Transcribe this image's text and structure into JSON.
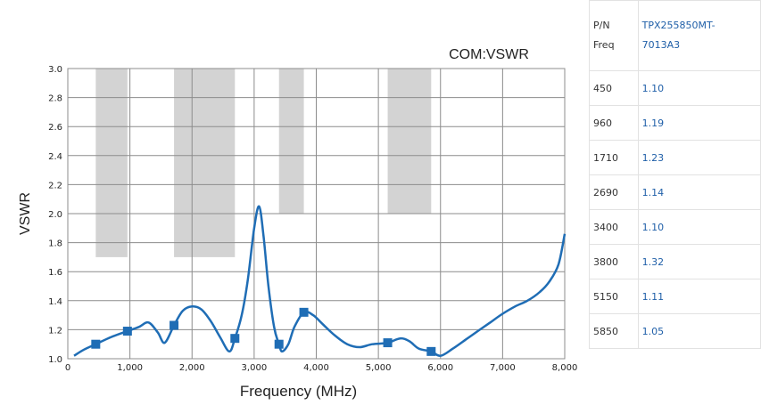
{
  "chart_data": {
    "type": "line",
    "title": "COM:VSWR",
    "xlabel": "Frequency (MHz)",
    "ylabel": "VSWR",
    "xlim": [
      0,
      8000
    ],
    "ylim": [
      1.0,
      3.0
    ],
    "x_ticks": [
      0,
      1000,
      2000,
      3000,
      4000,
      5000,
      6000,
      7000,
      8000
    ],
    "x_tick_labels": [
      "0",
      "1,000",
      "2,000",
      "3,000",
      "4,000",
      "5,000",
      "6,000",
      "7,000",
      "8,000"
    ],
    "y_ticks": [
      1.0,
      1.2,
      1.4,
      1.6,
      1.8,
      2.0,
      2.2,
      2.4,
      2.6,
      2.8,
      3.0
    ],
    "y_tick_labels": [
      "1.0",
      "1.2",
      "1.4",
      "1.6",
      "1.8",
      "2.0",
      "2.2",
      "2.4",
      "2.6",
      "2.8",
      "3.0"
    ],
    "grid": true,
    "line_color": "#1f6db5",
    "band_color": "#d3d3d3",
    "bands": [
      {
        "x0": 450,
        "x1": 960,
        "y0": 1.7,
        "y1": 3.0
      },
      {
        "x0": 1710,
        "x1": 2690,
        "y0": 1.7,
        "y1": 3.0
      },
      {
        "x0": 3400,
        "x1": 3800,
        "y0": 2.0,
        "y1": 3.0
      },
      {
        "x0": 5150,
        "x1": 5850,
        "y0": 2.0,
        "y1": 3.0
      }
    ],
    "series": [
      {
        "x": [
          100,
          250,
          450,
          700,
          960,
          1150,
          1300,
          1450,
          1560,
          1710,
          1850,
          2000,
          2150,
          2300,
          2450,
          2600,
          2690,
          2800,
          2900,
          3000,
          3080,
          3150,
          3230,
          3320,
          3400,
          3450,
          3550,
          3650,
          3800,
          3950,
          4100,
          4300,
          4500,
          4700,
          4900,
          5150,
          5350,
          5500,
          5650,
          5850,
          6000,
          6200,
          6400,
          6600,
          6800,
          7000,
          7200,
          7400,
          7600,
          7750,
          7900,
          8000
        ],
        "y": [
          1.02,
          1.06,
          1.1,
          1.15,
          1.19,
          1.22,
          1.25,
          1.18,
          1.11,
          1.23,
          1.33,
          1.36,
          1.34,
          1.26,
          1.15,
          1.05,
          1.14,
          1.3,
          1.55,
          1.9,
          2.05,
          1.85,
          1.5,
          1.22,
          1.1,
          1.05,
          1.1,
          1.22,
          1.32,
          1.3,
          1.24,
          1.16,
          1.1,
          1.08,
          1.1,
          1.11,
          1.14,
          1.12,
          1.07,
          1.05,
          1.02,
          1.07,
          1.13,
          1.19,
          1.25,
          1.31,
          1.36,
          1.4,
          1.46,
          1.53,
          1.65,
          1.86
        ]
      }
    ],
    "markers": [
      {
        "x": 450,
        "y": 1.1
      },
      {
        "x": 960,
        "y": 1.19
      },
      {
        "x": 1710,
        "y": 1.23
      },
      {
        "x": 2690,
        "y": 1.14
      },
      {
        "x": 3400,
        "y": 1.1
      },
      {
        "x": 3800,
        "y": 1.32
      },
      {
        "x": 5150,
        "y": 1.11
      },
      {
        "x": 5850,
        "y": 1.05
      }
    ]
  },
  "table": {
    "header": {
      "k1": "P/N",
      "k2": "Freq",
      "v1": "TPX255850MT-",
      "v2": "7013A3"
    },
    "rows": [
      {
        "freq": "450",
        "value": "1.10"
      },
      {
        "freq": "960",
        "value": "1.19"
      },
      {
        "freq": "1710",
        "value": "1.23"
      },
      {
        "freq": "2690",
        "value": "1.14"
      },
      {
        "freq": "3400",
        "value": "1.10"
      },
      {
        "freq": "3800",
        "value": "1.32"
      },
      {
        "freq": "5150",
        "value": "1.11"
      },
      {
        "freq": "5850",
        "value": "1.05"
      }
    ]
  }
}
